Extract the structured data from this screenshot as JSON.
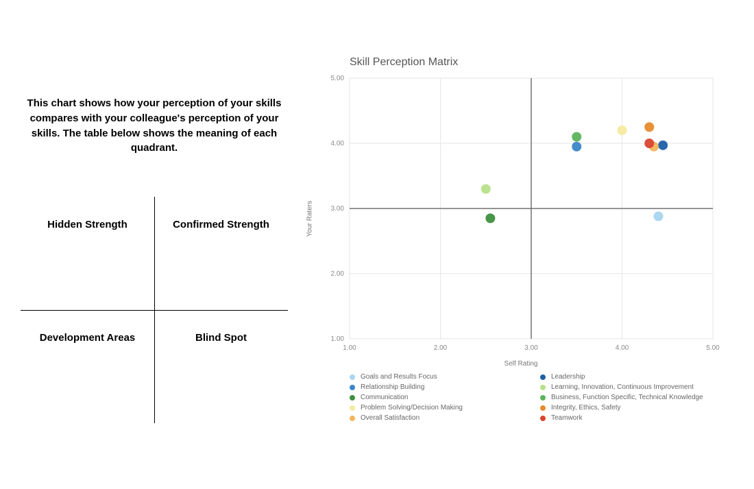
{
  "left": {
    "intro": "This chart shows how your perception of your skills compares with your colleague's perception of your skills. The table below shows the meaning of each quadrant.",
    "quadrants": {
      "tl": "Hidden Strength",
      "tr": "Confirmed Strength",
      "bl": "Development Areas",
      "br": "Blind Spot"
    }
  },
  "chart": {
    "title": "Skill Perception Matrix",
    "type": "scatter",
    "xlabel": "Self Rating",
    "ylabel": "Your Raters",
    "xlim": [
      1.0,
      5.0
    ],
    "ylim": [
      1.0,
      5.0
    ],
    "xticks": [
      1.0,
      2.0,
      3.0,
      4.0,
      5.0
    ],
    "yticks": [
      1.0,
      2.0,
      3.0,
      4.0,
      5.0
    ],
    "tick_format": "0.00",
    "grid_color": "#e5e5e5",
    "axis_color": "#e5e5e5",
    "crosshair_color": "#707070",
    "crosshair_x": 3.0,
    "crosshair_y": 3.0,
    "background_color": "#ffffff",
    "marker_radius": 7,
    "tick_fontsize": 10,
    "label_fontsize": 10,
    "title_fontsize": 16,
    "title_color": "#555555",
    "tick_color": "#888888",
    "series": [
      {
        "name": "Goals and Results Focus",
        "color": "#a9d5ef",
        "x": 4.4,
        "y": 2.88
      },
      {
        "name": "Leadership",
        "color": "#1f5fa8",
        "x": 4.45,
        "y": 3.97
      },
      {
        "name": "Relationship Building",
        "color": "#3b86c8",
        "x": 3.5,
        "y": 3.95
      },
      {
        "name": "Learning, Innovation, Continuous Improvement",
        "color": "#b7e08a",
        "x": 2.5,
        "y": 3.3
      },
      {
        "name": "Communication",
        "color": "#3f8f3f",
        "x": 2.55,
        "y": 2.85
      },
      {
        "name": "Business, Function Specific, Technical Knowledge",
        "color": "#5cb35c",
        "x": 3.5,
        "y": 4.1
      },
      {
        "name": "Problem Solving/Decision Making",
        "color": "#f5eaa0",
        "x": 4.0,
        "y": 4.2
      },
      {
        "name": "Integrity, Ethics, Safety",
        "color": "#e88b2e",
        "x": 4.3,
        "y": 4.25
      },
      {
        "name": "Overall Satisfaction",
        "color": "#f4b55f",
        "x": 4.35,
        "y": 3.95
      },
      {
        "name": "Teamwork",
        "color": "#d94530",
        "x": 4.3,
        "y": 4.0
      }
    ]
  }
}
